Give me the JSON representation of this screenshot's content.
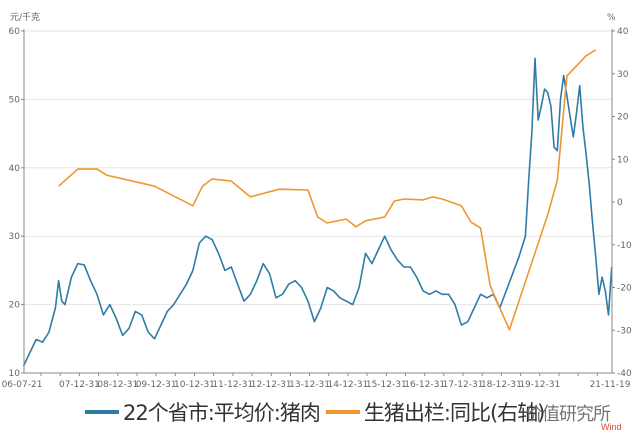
{
  "chart_data": {
    "type": "line",
    "title": "",
    "left_axis": {
      "unit_label": "元/千克",
      "ticks": [
        10,
        20,
        30,
        40,
        50,
        60
      ],
      "range": [
        10,
        60
      ]
    },
    "right_axis": {
      "unit_label": "%",
      "ticks": [
        -40,
        -30,
        -20,
        -10,
        0,
        10,
        20,
        30,
        40
      ],
      "range": [
        -40,
        40
      ]
    },
    "x_tick_labels": [
      "06-07-21",
      "07-12-31",
      "08-12-31",
      "09-12-31",
      "10-12-31",
      "11-12-31",
      "12-12-31",
      "13-12-31",
      "14-12-31",
      "15-12-31",
      "16-12-31",
      "17-12-31",
      "18-12-31",
      "19-12-31",
      "21-11-19"
    ],
    "grid": {
      "horizontal": true,
      "vertical": false
    },
    "legend_position": "bottom",
    "series": [
      {
        "name": "22个省市:平均价:猪肉",
        "axis": "left",
        "color": "#2e7ca6",
        "points": [
          [
            "2006-07",
            11.0
          ],
          [
            "2006-09",
            13.0
          ],
          [
            "2006-11",
            14.9
          ],
          [
            "2007-01",
            14.5
          ],
          [
            "2007-03",
            16.0
          ],
          [
            "2007-05",
            19.5
          ],
          [
            "2007-06",
            23.5
          ],
          [
            "2007-07",
            20.5
          ],
          [
            "2007-08",
            20.0
          ],
          [
            "2007-10",
            24.0
          ],
          [
            "2007-12",
            26.0
          ],
          [
            "2008-02",
            25.8
          ],
          [
            "2008-04",
            23.5
          ],
          [
            "2008-06",
            21.5
          ],
          [
            "2008-08",
            18.5
          ],
          [
            "2008-10",
            20.0
          ],
          [
            "2008-12",
            18.0
          ],
          [
            "2009-02",
            15.5
          ],
          [
            "2009-04",
            16.5
          ],
          [
            "2009-06",
            19.0
          ],
          [
            "2009-08",
            18.5
          ],
          [
            "2009-10",
            16.0
          ],
          [
            "2009-12",
            15.0
          ],
          [
            "2010-02",
            17.0
          ],
          [
            "2010-04",
            19.0
          ],
          [
            "2010-06",
            20.0
          ],
          [
            "2010-08",
            21.5
          ],
          [
            "2010-10",
            23.0
          ],
          [
            "2010-12",
            25.0
          ],
          [
            "2011-02",
            29.0
          ],
          [
            "2011-04",
            30.0
          ],
          [
            "2011-06",
            29.5
          ],
          [
            "2011-08",
            27.5
          ],
          [
            "2011-10",
            25.0
          ],
          [
            "2011-12",
            25.5
          ],
          [
            "2012-02",
            23.0
          ],
          [
            "2012-04",
            20.5
          ],
          [
            "2012-06",
            21.5
          ],
          [
            "2012-08",
            23.5
          ],
          [
            "2012-10",
            26.0
          ],
          [
            "2012-12",
            24.5
          ],
          [
            "2013-02",
            21.0
          ],
          [
            "2013-04",
            21.5
          ],
          [
            "2013-06",
            23.0
          ],
          [
            "2013-08",
            23.5
          ],
          [
            "2013-10",
            22.5
          ],
          [
            "2013-12",
            20.5
          ],
          [
            "2014-02",
            17.5
          ],
          [
            "2014-04",
            19.5
          ],
          [
            "2014-06",
            22.5
          ],
          [
            "2014-08",
            22.0
          ],
          [
            "2014-10",
            21.0
          ],
          [
            "2014-12",
            20.5
          ],
          [
            "2015-02",
            20.0
          ],
          [
            "2015-04",
            22.5
          ],
          [
            "2015-06",
            27.5
          ],
          [
            "2015-08",
            26.0
          ],
          [
            "2015-10",
            28.0
          ],
          [
            "2015-12",
            30.0
          ],
          [
            "2016-02",
            28.0
          ],
          [
            "2016-04",
            26.5
          ],
          [
            "2016-06",
            25.5
          ],
          [
            "2016-08",
            25.5
          ],
          [
            "2016-10",
            24.0
          ],
          [
            "2016-12",
            22.0
          ],
          [
            "2017-02",
            21.5
          ],
          [
            "2017-04",
            22.0
          ],
          [
            "2017-06",
            21.5
          ],
          [
            "2017-08",
            21.5
          ],
          [
            "2017-10",
            20.0
          ],
          [
            "2017-12",
            17.0
          ],
          [
            "2018-02",
            17.5
          ],
          [
            "2018-04",
            19.5
          ],
          [
            "2018-06",
            21.5
          ],
          [
            "2018-08",
            21.0
          ],
          [
            "2018-10",
            21.5
          ],
          [
            "2018-12",
            19.5
          ],
          [
            "2019-02",
            22.0
          ],
          [
            "2019-04",
            24.5
          ],
          [
            "2019-06",
            27.0
          ],
          [
            "2019-08",
            30.0
          ],
          [
            "2019-09",
            38.0
          ],
          [
            "2019-10",
            45.0
          ],
          [
            "2019-11",
            56.0
          ],
          [
            "2019-12",
            47.0
          ],
          [
            "2020-01",
            49.0
          ],
          [
            "2020-02",
            51.5
          ],
          [
            "2020-03",
            51.0
          ],
          [
            "2020-04",
            49.0
          ],
          [
            "2020-05",
            43.0
          ],
          [
            "2020-06",
            42.5
          ],
          [
            "2020-07",
            50.0
          ],
          [
            "2020-08",
            53.5
          ],
          [
            "2020-09",
            50.5
          ],
          [
            "2020-10",
            47.5
          ],
          [
            "2020-11",
            44.5
          ],
          [
            "2020-12",
            48.0
          ],
          [
            "2021-01",
            52.0
          ],
          [
            "2021-02",
            46.0
          ],
          [
            "2021-03",
            42.0
          ],
          [
            "2021-04",
            37.5
          ],
          [
            "2021-05",
            32.0
          ],
          [
            "2021-06",
            27.0
          ],
          [
            "2021-07",
            21.5
          ],
          [
            "2021-08",
            24.0
          ],
          [
            "2021-09",
            22.0
          ],
          [
            "2021-10",
            18.5
          ],
          [
            "2021-11",
            25.5
          ]
        ]
      },
      {
        "name": "生猪出栏:同比(右轴)",
        "axis": "right",
        "color": "#f0962e",
        "points": [
          [
            "2007-06",
            3.7
          ],
          [
            "2007-12",
            7.7
          ],
          [
            "2008-06",
            7.7
          ],
          [
            "2008-09",
            6.3
          ],
          [
            "2009-12",
            3.7
          ],
          [
            "2010-12",
            -0.9
          ],
          [
            "2011-03",
            3.7
          ],
          [
            "2011-06",
            5.4
          ],
          [
            "2011-12",
            4.9
          ],
          [
            "2012-06",
            1.2
          ],
          [
            "2013-03",
            3.0
          ],
          [
            "2013-12",
            2.8
          ],
          [
            "2014-03",
            -3.5
          ],
          [
            "2014-06",
            -4.9
          ],
          [
            "2014-12",
            -4.0
          ],
          [
            "2015-03",
            -5.8
          ],
          [
            "2015-06",
            -4.4
          ],
          [
            "2015-12",
            -3.5
          ],
          [
            "2016-03",
            0.2
          ],
          [
            "2016-06",
            0.7
          ],
          [
            "2016-12",
            0.5
          ],
          [
            "2017-03",
            1.2
          ],
          [
            "2017-06",
            0.7
          ],
          [
            "2017-12",
            -0.9
          ],
          [
            "2018-03",
            -4.7
          ],
          [
            "2018-06",
            -6.1
          ],
          [
            "2018-09",
            -19.6
          ],
          [
            "2019-03",
            -29.9
          ],
          [
            "2020-03",
            -3.0
          ],
          [
            "2020-06",
            5.1
          ],
          [
            "2020-09",
            29.5
          ],
          [
            "2021-03",
            34.2
          ],
          [
            "2021-06",
            35.6
          ]
        ]
      }
    ]
  },
  "axes": {
    "left_unit": "元/千克",
    "right_unit": "%",
    "left_ticks": [
      "60",
      "50",
      "40",
      "30",
      "20",
      "10"
    ],
    "right_ticks": [
      "40",
      "30",
      "20",
      "10",
      "0",
      "-10",
      "-20",
      "-30",
      "-40"
    ],
    "x_ticks": [
      "06-07-21",
      "07-12-31",
      "08-12-31",
      "09-12-31",
      "10-12-31",
      "11-12-31",
      "12-12-31",
      "13-12-31",
      "14-12-31",
      "15-12-31",
      "16-12-31",
      "17-12-31",
      "18-12-31",
      "19-12-31",
      "21-11-19"
    ]
  },
  "legend": {
    "items": [
      {
        "label": "22个省市:平均价:猪肉",
        "color": "#2e7ca6"
      },
      {
        "label": "生猪出栏:同比(右轴)",
        "color": "#f0962e"
      }
    ]
  },
  "watermark": "价值研究所",
  "source": "Wind"
}
